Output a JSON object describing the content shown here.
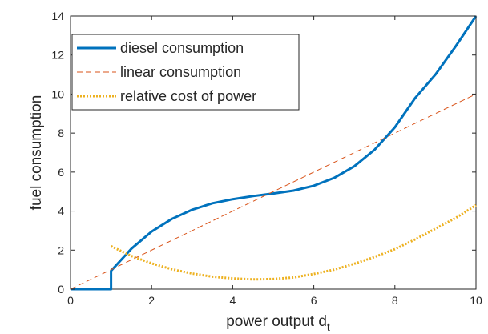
{
  "chart_data": {
    "type": "line",
    "title": "",
    "xlabel": "power output d",
    "xlabel_subscript": "t",
    "ylabel": "fuel consumption",
    "xlim": [
      0,
      10
    ],
    "ylim": [
      0,
      14
    ],
    "xticks": [
      0,
      2,
      4,
      6,
      8,
      10
    ],
    "yticks": [
      0,
      2,
      4,
      6,
      8,
      10,
      12,
      14
    ],
    "xtick_labels": [
      "0",
      "2",
      "4",
      "6",
      "8",
      "10"
    ],
    "ytick_labels": [
      "0",
      "2",
      "4",
      "6",
      "8",
      "10",
      "12",
      "14"
    ],
    "grid": false,
    "legend_position": "top-left",
    "series": [
      {
        "name": "diesel consumption",
        "style": "solid",
        "color": "#0072BD",
        "x": [
          0,
          1,
          1,
          1.5,
          2,
          2.5,
          3,
          3.5,
          4,
          4.5,
          5,
          5.5,
          6,
          6.5,
          7,
          7.5,
          8,
          8.5,
          9,
          9.5,
          10
        ],
        "y": [
          0,
          0,
          0.94,
          2.07,
          2.95,
          3.6,
          4.07,
          4.4,
          4.61,
          4.77,
          4.9,
          5.05,
          5.3,
          5.7,
          6.3,
          7.15,
          8.3,
          9.8,
          11.0,
          12.45,
          14.0
        ]
      },
      {
        "name": "linear consumption",
        "style": "dashed",
        "color": "#D95319",
        "x": [
          0,
          10
        ],
        "y": [
          0,
          10
        ]
      },
      {
        "name": "relative cost of power",
        "style": "dotted",
        "color": "#EDB120",
        "x": [
          1,
          1.5,
          2,
          2.5,
          3,
          3.5,
          4,
          4.5,
          5,
          5.5,
          6,
          6.5,
          7,
          7.5,
          8,
          8.5,
          9,
          9.5,
          10
        ],
        "y": [
          2.2,
          1.7,
          1.32,
          1.02,
          0.8,
          0.64,
          0.55,
          0.5,
          0.52,
          0.6,
          0.78,
          1.0,
          1.3,
          1.65,
          2.05,
          2.55,
          3.1,
          3.65,
          4.3
        ]
      }
    ]
  }
}
